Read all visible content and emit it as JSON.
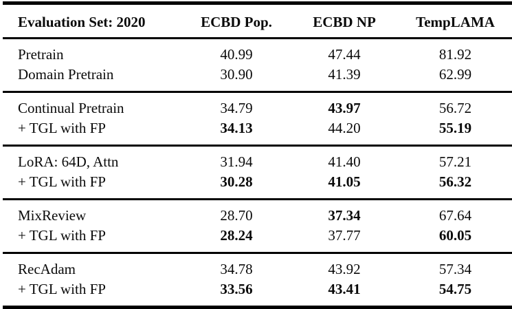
{
  "table": {
    "headers": [
      "Evaluation Set: 2020",
      "ECBD Pop.",
      "ECBD NP",
      "TempLAMA"
    ],
    "groups": [
      {
        "rows": [
          {
            "label": "Pretrain",
            "values": [
              "40.99",
              "47.44",
              "81.92"
            ],
            "bold": [
              false,
              false,
              false
            ]
          },
          {
            "label": "Domain Pretrain",
            "values": [
              "30.90",
              "41.39",
              "62.99"
            ],
            "bold": [
              false,
              false,
              false
            ]
          }
        ]
      },
      {
        "rows": [
          {
            "label": "Continual Pretrain",
            "values": [
              "34.79",
              "43.97",
              "56.72"
            ],
            "bold": [
              false,
              true,
              false
            ]
          },
          {
            "label": "+ TGL with FP",
            "values": [
              "34.13",
              "44.20",
              "55.19"
            ],
            "bold": [
              true,
              false,
              true
            ]
          }
        ]
      },
      {
        "rows": [
          {
            "label": "LoRA: 64D, Attn",
            "values": [
              "31.94",
              "41.40",
              "57.21"
            ],
            "bold": [
              false,
              false,
              false
            ]
          },
          {
            "label": "+ TGL with FP",
            "values": [
              "30.28",
              "41.05",
              "56.32"
            ],
            "bold": [
              true,
              true,
              true
            ]
          }
        ]
      },
      {
        "rows": [
          {
            "label": "MixReview",
            "values": [
              "28.70",
              "37.34",
              "67.64"
            ],
            "bold": [
              false,
              true,
              false
            ]
          },
          {
            "label": "+ TGL with FP",
            "values": [
              "28.24",
              "37.77",
              "60.05"
            ],
            "bold": [
              true,
              false,
              true
            ]
          }
        ]
      },
      {
        "rows": [
          {
            "label": "RecAdam",
            "values": [
              "34.78",
              "43.92",
              "57.34"
            ],
            "bold": [
              false,
              false,
              false
            ]
          },
          {
            "label": "+ TGL with FP",
            "values": [
              "33.56",
              "43.41",
              "54.75"
            ],
            "bold": [
              true,
              true,
              true
            ]
          }
        ]
      }
    ]
  }
}
